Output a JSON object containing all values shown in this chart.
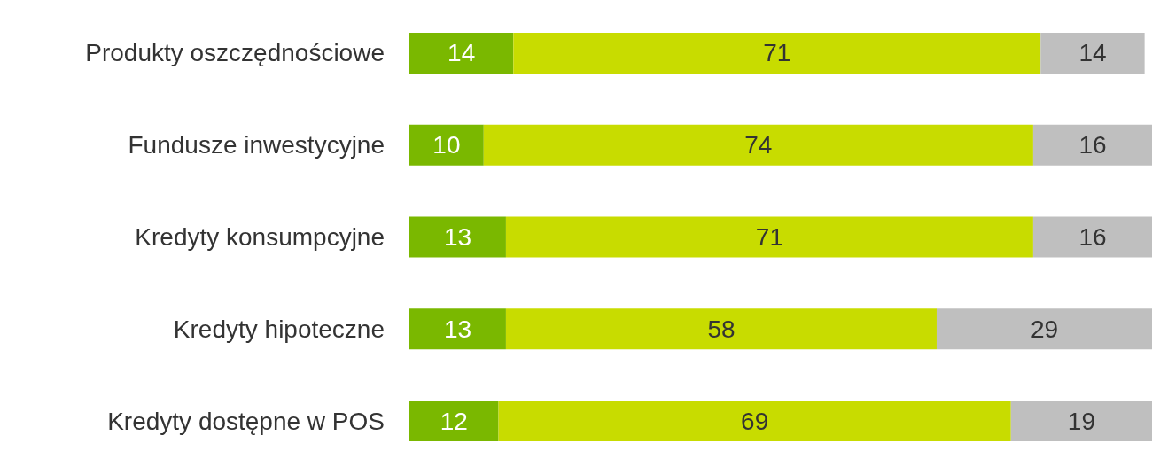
{
  "chart_data": {
    "type": "bar",
    "orientation": "horizontal",
    "stacked": true,
    "data_labels": true,
    "categories": [
      "Produkty oszczędnościowe",
      "Fundusze inwestycyjne",
      "Kredyty konsumpcyjne",
      "Kredyty hipoteczne",
      "Kredyty dostępne w POS"
    ],
    "series": [
      {
        "color": "#7ab800",
        "values": [
          14,
          10,
          13,
          13,
          12
        ]
      },
      {
        "color": "#c8dc00",
        "values": [
          71,
          74,
          71,
          58,
          69
        ]
      },
      {
        "color": "#bfbfbf",
        "values": [
          14,
          16,
          16,
          29,
          19
        ]
      }
    ]
  }
}
